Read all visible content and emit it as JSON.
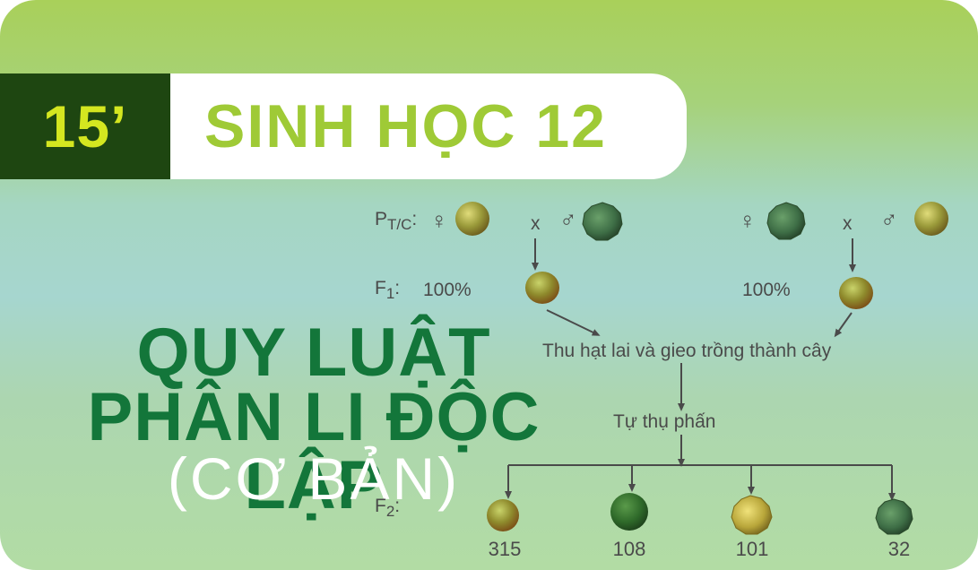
{
  "badge": "15’",
  "subject": "SINH HỌC 12",
  "title_line1": "QUY LUẬT",
  "title_line2": "PHÂN LI ĐỘC LẬP",
  "subtitle": "(CƠ BẢN)",
  "diagram": {
    "p_label": "P",
    "p_sub": "T/C",
    "p_colon": ":",
    "female_symbol": "♀",
    "male_symbol": "♂",
    "cross_symbol": "x",
    "f1_label": "F",
    "f1_sub": "1",
    "f1_colon": ":",
    "f1_percent_left": "100%",
    "f1_percent_right": "100%",
    "step1": "Thu hạt lai và gieo trồng thành cây",
    "step2": "Tự thụ phấn",
    "f2_label": "F",
    "f2_sub": "2",
    "f2_colon": ":",
    "f2_counts": [
      "315",
      "108",
      "101",
      "32"
    ]
  },
  "seed_types": [
    "yellow-smooth-seed",
    "green-smooth-seed",
    "yellow-wrinkled-seed",
    "green-wrinkled-seed"
  ],
  "colors": {
    "badge_bg": "#1e4611",
    "badge_text": "#d4e620",
    "subject_text": "#9fca36",
    "title_green": "#13763a",
    "text_gray": "#4a4a4a"
  }
}
